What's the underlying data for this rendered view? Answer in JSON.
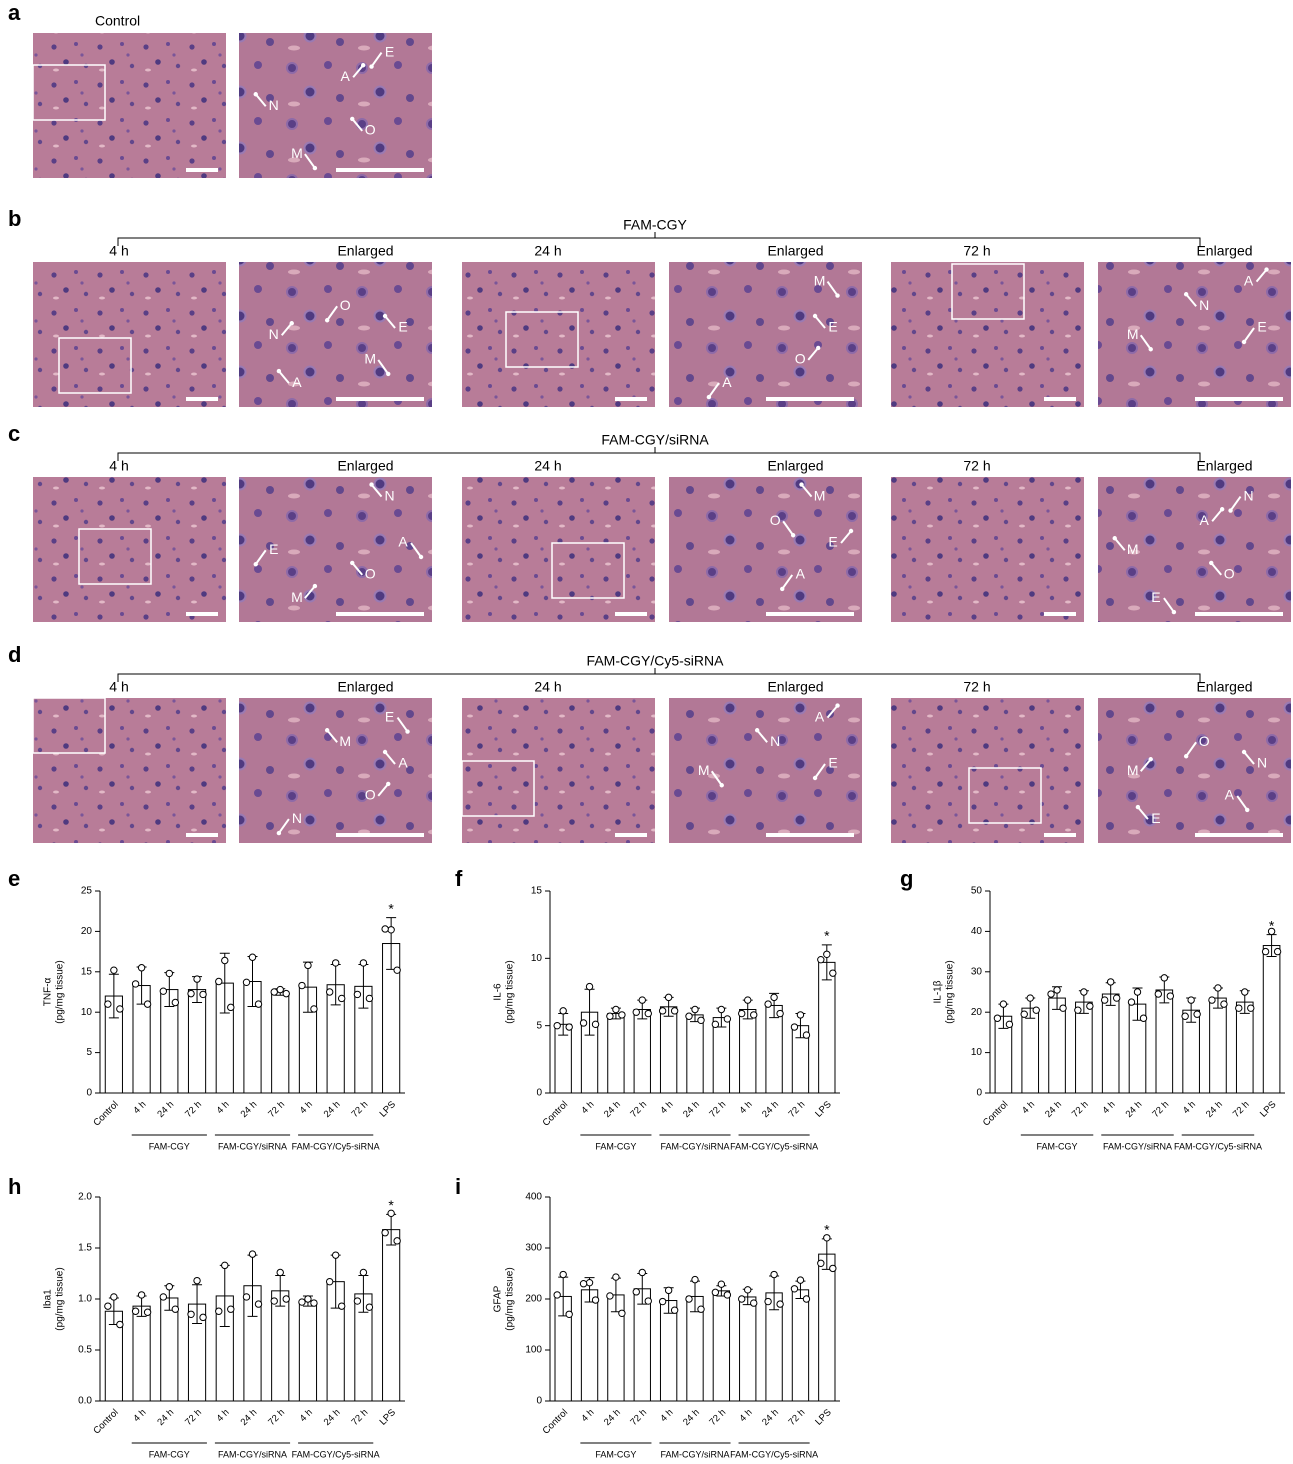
{
  "histology": {
    "a": {
      "label": "a",
      "title": "Control",
      "annotations": [
        "E",
        "A",
        "N",
        "M",
        "O"
      ]
    },
    "rows": [
      {
        "label": "b",
        "group": "FAM-CGY",
        "columns": [
          "4 h",
          "Enlarged",
          "24 h",
          "Enlarged",
          "72 h",
          "Enlarged"
        ],
        "annotations": [
          [
            "O",
            "N",
            "A",
            "M",
            "E"
          ],
          [
            "A",
            "O",
            "E",
            "M"
          ],
          [
            "E",
            "A",
            "N",
            "M"
          ]
        ]
      },
      {
        "label": "c",
        "group": "FAM-CGY/siRNA",
        "columns": [
          "4 h",
          "Enlarged",
          "24 h",
          "Enlarged",
          "72 h",
          "Enlarged"
        ],
        "annotations": [
          [
            "E",
            "M",
            "O",
            "A",
            "N"
          ],
          [
            "A",
            "E",
            "M",
            "O"
          ],
          [
            "N",
            "A",
            "M",
            "E",
            "O"
          ]
        ]
      },
      {
        "label": "d",
        "group": "FAM-CGY/Cy5-siRNA",
        "columns": [
          "4 h",
          "Enlarged",
          "24 h",
          "Enlarged",
          "72 h",
          "Enlarged"
        ],
        "annotations": [
          [
            "N",
            "O",
            "A",
            "E",
            "M"
          ],
          [
            "E",
            "A",
            "N",
            "M"
          ],
          [
            "O",
            "M",
            "E",
            "A",
            "N"
          ]
        ]
      }
    ]
  },
  "chart_data": [
    {
      "type": "bar",
      "label": "e",
      "ylabel": "TNF-α",
      "ylabel_unit": "(pg/mg tissue)",
      "color": "#ffffff",
      "categories": [
        "Control",
        "4 h",
        "24 h",
        "72 h",
        "4 h",
        "24 h",
        "72 h",
        "4 h",
        "24 h",
        "72 h",
        "LPS"
      ],
      "groups": [
        "FAM-CGY",
        "FAM-CGY/siRNA",
        "FAM-CGY/Cy5-siRNA"
      ],
      "values": [
        12,
        13.3,
        12.8,
        12.8,
        13.6,
        13.8,
        12.5,
        13.1,
        13.4,
        13.2,
        18.5
      ],
      "errors": [
        2.7,
        2.3,
        2.1,
        1.6,
        3.7,
        3.1,
        0.4,
        3.1,
        2.5,
        2.7,
        3.2
      ],
      "points": [
        [
          15.2,
          11.0,
          10.4
        ],
        [
          15.5,
          13.5,
          11.0
        ],
        [
          14.8,
          12.6,
          11.2
        ],
        [
          14.1,
          12.3,
          12.2
        ],
        [
          16.4,
          13.8,
          10.6
        ],
        [
          16.8,
          13.7,
          11.0
        ],
        [
          12.8,
          12.5,
          12.3
        ],
        [
          15.8,
          13.3,
          10.4
        ],
        [
          16.1,
          12.5,
          11.7
        ],
        [
          16.1,
          12.2,
          11.7
        ],
        [
          20.2,
          20.3,
          15.2
        ]
      ],
      "annotation": "*",
      "ylim": [
        0,
        25
      ],
      "yticks": [
        0,
        5,
        10,
        15,
        20,
        25
      ]
    },
    {
      "type": "bar",
      "label": "f",
      "ylabel": "IL-6",
      "ylabel_unit": "(pg/mg tissue)",
      "color": "#ffffff",
      "categories": [
        "Control",
        "4 h",
        "24 h",
        "72 h",
        "4 h",
        "24 h",
        "72 h",
        "4 h",
        "24 h",
        "72 h",
        "LPS"
      ],
      "groups": [
        "FAM-CGY",
        "FAM-CGY/siRNA",
        "FAM-CGY/Cy5-siRNA"
      ],
      "values": [
        5.1,
        6.0,
        5.9,
        6.2,
        6.4,
        5.8,
        5.6,
        6.2,
        6.5,
        5.0,
        9.7
      ],
      "errors": [
        0.8,
        1.7,
        0.4,
        0.7,
        0.7,
        0.5,
        0.7,
        0.7,
        0.9,
        0.9,
        1.3
      ],
      "points": [
        [
          6.1,
          5.0,
          4.9
        ],
        [
          7.9,
          5.2,
          5.1
        ],
        [
          6.2,
          5.7,
          5.8
        ],
        [
          6.9,
          6.0,
          5.9
        ],
        [
          7.1,
          6.1,
          6.1
        ],
        [
          6.2,
          5.7,
          5.4
        ],
        [
          6.2,
          5.1,
          5.5
        ],
        [
          6.9,
          5.9,
          5.8
        ],
        [
          7.1,
          6.6,
          5.9
        ],
        [
          5.8,
          4.9,
          4.3
        ],
        [
          10.3,
          9.9,
          8.9
        ]
      ],
      "annotation": "*",
      "ylim": [
        0,
        15
      ],
      "yticks": [
        0,
        5,
        10,
        15
      ]
    },
    {
      "type": "bar",
      "label": "g",
      "ylabel": "IL-1β",
      "ylabel_unit": "(pg/mg tissue)",
      "color": "#ffffff",
      "categories": [
        "Control",
        "4 h",
        "24 h",
        "72 h",
        "4 h",
        "24 h",
        "72 h",
        "4 h",
        "24 h",
        "72 h",
        "LPS"
      ],
      "groups": [
        "FAM-CGY",
        "FAM-CGY/siRNA",
        "FAM-CGY/Cy5-siRNA"
      ],
      "values": [
        19,
        21,
        23.5,
        22.5,
        24.5,
        22,
        25.5,
        20.5,
        23.5,
        22.5,
        36.5
      ],
      "errors": [
        3,
        2.5,
        2.8,
        2.8,
        2.8,
        4,
        3.2,
        3,
        2.5,
        2.8,
        2.7
      ],
      "points": [
        [
          22,
          18.5,
          17
        ],
        [
          23.5,
          19.5,
          20.5
        ],
        [
          25.5,
          24.5,
          21
        ],
        [
          25,
          20.5,
          21.5
        ],
        [
          27.5,
          23,
          23.5
        ],
        [
          25,
          22.5,
          18.5
        ],
        [
          28.5,
          24.5,
          24
        ],
        [
          23,
          19,
          19.5
        ],
        [
          26,
          23,
          22
        ],
        [
          25,
          21,
          21
        ],
        [
          40,
          35,
          35
        ]
      ],
      "annotation": "*",
      "ylim": [
        0,
        50
      ],
      "yticks": [
        0,
        10,
        20,
        30,
        40,
        50
      ]
    },
    {
      "type": "bar",
      "label": "h",
      "ylabel": "Iba1",
      "ylabel_unit": "(pg/mg tissue)",
      "color": "#ffffff",
      "categories": [
        "Control",
        "4 h",
        "24 h",
        "72 h",
        "4 h",
        "24 h",
        "72 h",
        "4 h",
        "24 h",
        "72 h",
        "LPS"
      ],
      "groups": [
        "FAM-CGY",
        "FAM-CGY/siRNA",
        "FAM-CGY/Cy5-siRNA"
      ],
      "values": [
        0.88,
        0.93,
        1.01,
        0.95,
        1.03,
        1.13,
        1.08,
        0.98,
        1.17,
        1.05,
        1.68
      ],
      "errors": [
        0.13,
        0.1,
        0.12,
        0.19,
        0.3,
        0.3,
        0.15,
        0.05,
        0.26,
        0.18,
        0.15
      ],
      "points": [
        [
          1.02,
          0.93,
          0.75
        ],
        [
          1.04,
          0.88,
          0.87
        ],
        [
          1.12,
          1.02,
          0.9
        ],
        [
          1.18,
          0.85,
          0.82
        ],
        [
          1.33,
          0.88,
          0.9
        ],
        [
          1.44,
          1.02,
          0.95
        ],
        [
          1.26,
          0.98,
          1.0
        ],
        [
          1.0,
          0.97,
          0.96
        ],
        [
          1.43,
          1.17,
          0.93
        ],
        [
          1.26,
          0.98,
          0.92
        ],
        [
          1.84,
          1.65,
          1.57
        ]
      ],
      "annotation": "*",
      "ylim": [
        0,
        2
      ],
      "yticks": [
        {
          "value": 0,
          "label": "0.0"
        },
        0.5,
        {
          "value": 1,
          "label": "1.0"
        },
        1.5,
        {
          "value": 2,
          "label": "2.0"
        }
      ]
    },
    {
      "type": "bar",
      "label": "i",
      "ylabel": "GFAP",
      "ylabel_unit": "(pg/mg tissue)",
      "color": "#ffffff",
      "categories": [
        "Control",
        "4 h",
        "24 h",
        "72 h",
        "4 h",
        "24 h",
        "72 h",
        "4 h",
        "24 h",
        "72 h",
        "LPS"
      ],
      "groups": [
        "FAM-CGY",
        "FAM-CGY/siRNA",
        "FAM-CGY/Cy5-siRNA"
      ],
      "values": [
        205,
        218,
        208,
        220,
        197,
        205,
        216,
        204,
        212,
        218,
        288
      ],
      "errors": [
        38,
        24,
        33,
        30,
        25,
        30,
        10,
        15,
        33,
        17,
        30
      ],
      "points": [
        [
          248,
          208,
          170
        ],
        [
          232,
          230,
          198
        ],
        [
          243,
          206,
          172
        ],
        [
          252,
          214,
          196
        ],
        [
          217,
          195,
          178
        ],
        [
          238,
          200,
          180
        ],
        [
          229,
          213,
          208
        ],
        [
          218,
          200,
          192
        ],
        [
          248,
          195,
          190
        ],
        [
          237,
          220,
          200
        ],
        [
          320,
          270,
          260
        ]
      ],
      "annotation": "*",
      "ylim": [
        0,
        400
      ],
      "yticks": [
        0,
        100,
        200,
        300,
        400
      ]
    }
  ]
}
